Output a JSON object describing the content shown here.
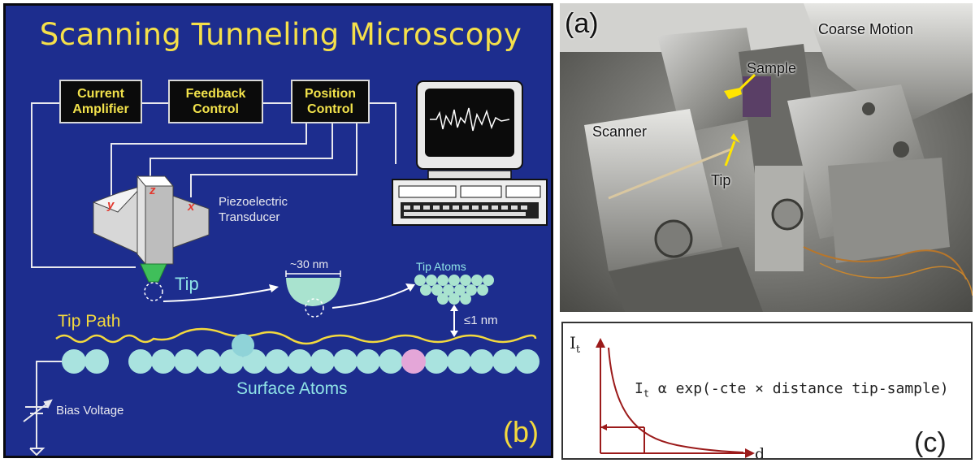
{
  "panel_b": {
    "title": "Scanning Tunneling Microscopy",
    "boxes": [
      {
        "label": "Current\nAmplifier"
      },
      {
        "label": "Feedback\nControl"
      },
      {
        "label": "Position\nControl"
      }
    ],
    "axes": {
      "y": "y",
      "z": "z",
      "x": "x"
    },
    "piezo_label": "Piezoelectric\nTransducer",
    "tip_label": "Tip",
    "tip_size_label": "~30 nm",
    "tip_atoms_label": "Tip Atoms",
    "gap_label": "≤1 nm",
    "tip_path_label": "Tip Path",
    "surface_label": "Surface Atoms",
    "bias_label": "Bias Voltage",
    "panel_letter": "(b)",
    "colors": {
      "background": "#1d2d8e",
      "title": "#f5e04a",
      "atoms": "#a9e3df",
      "highlight_atom": "#e4a6d8",
      "tip": "#3fbf5a",
      "wire": "#e8e8ee"
    }
  },
  "panel_a": {
    "panel_letter": "(a)",
    "labels": {
      "coarse": "Coarse Motion",
      "sample": "Sample",
      "scanner": "Scanner",
      "tip": "Tip"
    }
  },
  "panel_c": {
    "y_axis": "I",
    "y_sub": "t",
    "x_axis": "d",
    "formula_i": "I",
    "formula_sub": "t",
    "formula_rest": " α exp(-cte × distance tip-sample)",
    "panel_letter": "(c)",
    "colors": {
      "curve": "#9b1a1a"
    }
  }
}
